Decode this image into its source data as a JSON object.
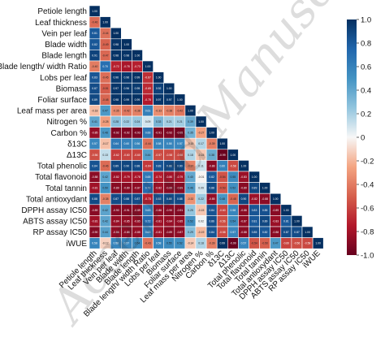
{
  "watermark_text": "Accepted Manuscript",
  "chart_data": {
    "type": "heatmap",
    "shape": "lower-triangular-correlation",
    "variables": [
      "Petiole length",
      "Leaf thickness",
      "Vein per leaf",
      "Blade width",
      "Blade length",
      "Blade length/ width Ratio",
      "Lobs per leaf",
      "Biomass",
      "Foliar surface",
      "Leaf mass per area",
      "Nitrogen %",
      "Carbon %",
      "δ13C",
      "Δ13C",
      "Total phenolic",
      "Total flavonoid",
      "Total tannin",
      "Total antioxydant",
      "DPPH assay IC50",
      "ABTS assay IC50",
      "RP assay IC50",
      "iWUE"
    ],
    "matrix": [
      [
        1.0
      ],
      [
        -0.46,
        1.0
      ],
      [
        0.81,
        -0.44,
        1.0
      ],
      [
        0.82,
        -0.49,
        0.98,
        1.0
      ],
      [
        0.91,
        -0.47,
        0.98,
        0.98,
        1.0
      ],
      [
        -0.4,
        0.7,
        -0.72,
        -0.78,
        -0.73,
        1.0
      ],
      [
        0.83,
        -0.45,
        0.96,
        0.96,
        0.99,
        -0.67,
        1.0
      ],
      [
        0.87,
        -0.51,
        0.97,
        0.96,
        0.95,
        -0.69,
        0.92,
        1.0
      ],
      [
        0.89,
        -0.48,
        0.98,
        0.99,
        0.99,
        -0.75,
        0.97,
        0.97,
        1.0
      ],
      [
        -0.18,
        0.47,
        -0.35,
        -0.42,
        -0.38,
        0.61,
        -0.33,
        -0.38,
        -0.42,
        1.0
      ],
      [
        0.41,
        -0.28,
        0.28,
        0.22,
        0.24,
        0.09,
        0.33,
        0.21,
        0.21,
        0.39,
        1.0
      ],
      [
        -0.85,
        0.48,
        -0.92,
        -0.92,
        -0.93,
        0.66,
        -0.91,
        -0.92,
        -0.95,
        0.35,
        -0.27,
        1.0
      ],
      [
        0.57,
        -0.17,
        0.64,
        0.6,
        0.56,
        -0.44,
        0.58,
        0.58,
        0.57,
        -0.15,
        0.17,
        -0.39,
        1.0
      ],
      [
        -0.56,
        0.13,
        -0.62,
        -0.6,
        -0.6,
        0.44,
        -0.57,
        -0.58,
        -0.58,
        0.18,
        -0.15,
        0.38,
        -0.99,
        1.0
      ],
      [
        0.84,
        -0.46,
        0.89,
        0.9,
        0.88,
        -0.64,
        0.83,
        0.88,
        0.9,
        -0.37,
        0.11,
        -0.88,
        0.6,
        -0.58,
        1.0
      ],
      [
        -0.88,
        0.42,
        -0.82,
        -0.79,
        -0.78,
        0.65,
        -0.74,
        -0.8,
        -0.79,
        0.4,
        -0.01,
        0.82,
        -0.54,
        0.55,
        -0.83,
        1.0
      ],
      [
        -0.81,
        0.5,
        -0.89,
        -0.89,
        -0.87,
        0.72,
        -0.82,
        -0.89,
        -0.89,
        0.46,
        0.09,
        0.88,
        -0.53,
        0.52,
        -0.89,
        0.89,
        1.0
      ],
      [
        0.88,
        -0.38,
        0.87,
        0.88,
        0.87,
        -0.73,
        0.83,
        0.88,
        0.88,
        -0.32,
        0.22,
        -0.85,
        0.48,
        -0.48,
        0.9,
        -0.82,
        -0.88,
        1.0
      ],
      [
        -0.89,
        0.42,
        -0.9,
        -0.91,
        -0.89,
        0.63,
        -0.86,
        -0.9,
        -0.91,
        0.25,
        -0.15,
        0.84,
        -0.6,
        0.58,
        -0.88,
        0.83,
        0.85,
        -0.89,
        1.0
      ],
      [
        -0.81,
        0.42,
        -0.84,
        -0.85,
        -0.85,
        0.72,
        -0.81,
        -0.84,
        -0.85,
        0.52,
        0.02,
        0.86,
        -0.56,
        0.54,
        -0.87,
        0.81,
        0.89,
        -0.83,
        0.81,
        1.0
      ],
      [
        -0.9,
        0.44,
        -0.86,
        -0.88,
        -0.85,
        0.63,
        -0.81,
        -0.89,
        -0.87,
        0.29,
        -0.19,
        0.84,
        -0.58,
        0.57,
        -0.88,
        0.85,
        0.82,
        -0.88,
        0.87,
        0.87,
        1.0
      ],
      [
        0.58,
        -0.12,
        0.58,
        0.57,
        0.54,
        -0.43,
        0.58,
        0.55,
        0.52,
        -0.14,
        0.18,
        -0.39,
        0.99,
        -0.99,
        0.57,
        -0.54,
        -0.5,
        0.47,
        -0.6,
        -0.56,
        -0.58,
        1.0
      ]
    ],
    "colorbar": {
      "range": [
        -1.0,
        1.0
      ],
      "ticks": [
        "1.0",
        "0.8",
        "0.6",
        "0.4",
        "0.2",
        "0",
        "-0.2",
        "-0.4",
        "-0.6",
        "-0.8",
        "-1.0"
      ],
      "tick_values": [
        1.0,
        0.8,
        0.6,
        0.4,
        0.2,
        0,
        -0.2,
        -0.4,
        -0.6,
        -0.8,
        -1.0
      ],
      "colors": {
        "negative": "#67001f",
        "neutral": "#f7f7f7",
        "positive": "#053061"
      }
    }
  }
}
